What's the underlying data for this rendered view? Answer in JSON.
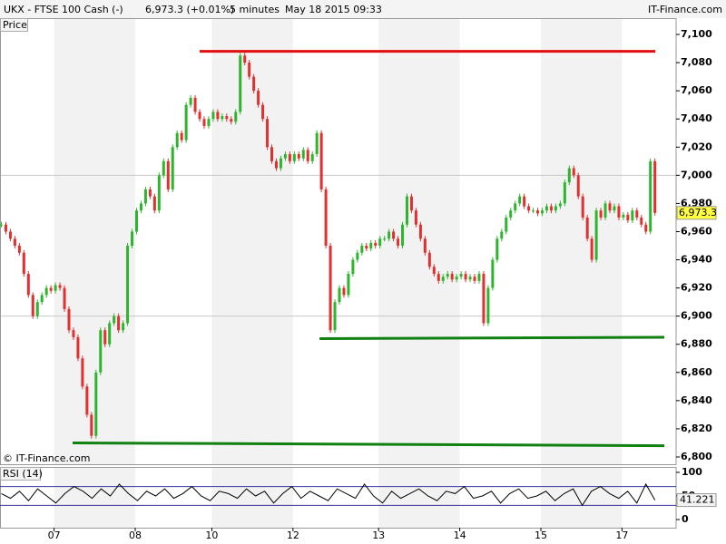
{
  "header": {
    "instrument": "UKX - FTSE 100 Cash (-)",
    "quote": "6,973.3 (+0.01%)",
    "interval": "5 minutes",
    "datetime": "May 18 2015 09:33",
    "brand": "IT-Finance.com",
    "copyright": "© IT-Finance.com"
  },
  "chart_data": [
    {
      "type": "candlestick",
      "title": "Price",
      "values": [
        6965,
        6960,
        6955,
        6950,
        6945,
        6930,
        6915,
        6900,
        6910,
        6915,
        6920,
        6918,
        6922,
        6920,
        6905,
        6890,
        6885,
        6870,
        6850,
        6830,
        6815,
        6860,
        6890,
        6880,
        6895,
        6900,
        6890,
        6895,
        6950,
        6960,
        6975,
        6980,
        6990,
        6985,
        6975,
        7000,
        7010,
        6990,
        7020,
        7030,
        7025,
        7050,
        7055,
        7045,
        7040,
        7035,
        7040,
        7045,
        7040,
        7042,
        7040,
        7038,
        7045,
        7085,
        7080,
        7070,
        7060,
        7050,
        7040,
        7020,
        7010,
        7005,
        7012,
        7015,
        7010,
        7015,
        7012,
        7018,
        7010,
        7015,
        7030,
        6990,
        6950,
        6890,
        6910,
        6920,
        6915,
        6930,
        6940,
        6945,
        6950,
        6948,
        6952,
        6950,
        6955,
        6955,
        6960,
        6955,
        6950,
        6965,
        6985,
        6975,
        6965,
        6955,
        6945,
        6935,
        6930,
        6925,
        6928,
        6930,
        6926,
        6928,
        6930,
        6926,
        6928,
        6925,
        6930,
        6895,
        6920,
        6940,
        6955,
        6960,
        6970,
        6975,
        6980,
        6985,
        6978,
        6975,
        6975,
        6973,
        6975,
        6978,
        6975,
        6978,
        6980,
        6995,
        7005,
        7000,
        6985,
        6970,
        6955,
        6940,
        6975,
        6970,
        6980,
        6975,
        6978,
        6970,
        6972,
        6968,
        6975,
        6970,
        6965,
        6960,
        7010,
        6973.3
      ],
      "last_label": "6,973.3",
      "up_color": "#2db52d",
      "down_color": "#e03030",
      "xlim": [
        0,
        150
      ],
      "xticks": [
        {
          "value": 12,
          "label": "07"
        },
        {
          "value": 30,
          "label": "08"
        },
        {
          "value": 47,
          "label": "10"
        },
        {
          "value": 65,
          "label": "12"
        },
        {
          "value": 84,
          "label": "13"
        },
        {
          "value": 102,
          "label": "14"
        },
        {
          "value": 120,
          "label": "15"
        },
        {
          "value": 138,
          "label": "17"
        }
      ],
      "ylim": [
        6800,
        7100
      ],
      "yticks": [
        {
          "value": 6800,
          "label": "6,800"
        },
        {
          "value": 6820,
          "label": "6,820"
        },
        {
          "value": 6840,
          "label": "6,840"
        },
        {
          "value": 6860,
          "label": "6,860"
        },
        {
          "value": 6880,
          "label": "6,880"
        },
        {
          "value": 6900,
          "label": "6,900"
        },
        {
          "value": 6920,
          "label": "6,920"
        },
        {
          "value": 6940,
          "label": "6,940"
        },
        {
          "value": 6960,
          "label": "6,960"
        },
        {
          "value": 6980,
          "label": "6,980"
        },
        {
          "value": 7000,
          "label": "7,000"
        },
        {
          "value": 7020,
          "label": "7,020"
        },
        {
          "value": 7040,
          "label": "7,040"
        },
        {
          "value": 7060,
          "label": "7,060"
        },
        {
          "value": 7080,
          "label": "7,080"
        },
        {
          "value": 7100,
          "label": "7,100"
        }
      ],
      "gridlines": [
        6900,
        7000
      ],
      "trendlines": [
        {
          "color": "#e01010",
          "x": [
            44.3,
            145.4
          ],
          "values": [
            7088,
            7088
          ]
        },
        {
          "color": "#108010",
          "x": [
            70.9,
            147.4
          ],
          "values": [
            6884,
            6885
          ]
        },
        {
          "color": "#108010",
          "x": [
            16.1,
            147.4
          ],
          "values": [
            6810,
            6808
          ]
        }
      ]
    },
    {
      "type": "line",
      "title": "RSI (14)",
      "color": "#000000",
      "level_color": "#3030a0",
      "values": [
        55,
        45,
        60,
        40,
        65,
        50,
        35,
        55,
        70,
        60,
        45,
        65,
        50,
        75,
        55,
        40,
        60,
        50,
        65,
        45,
        55,
        70,
        50,
        40,
        60,
        55,
        45,
        65,
        50,
        60,
        35,
        55,
        70,
        45,
        60,
        50,
        40,
        65,
        55,
        45,
        75,
        50,
        35,
        60,
        45,
        55,
        65,
        50,
        40,
        60,
        55,
        70,
        45,
        50,
        60,
        35,
        55,
        65,
        45,
        50,
        60,
        40,
        55,
        65,
        30,
        60,
        70,
        55,
        45,
        60,
        35,
        75,
        41.221
      ],
      "ylim": [
        0,
        100
      ],
      "yticks": [
        0,
        50,
        100
      ],
      "levels": [
        30,
        70
      ]
    }
  ]
}
